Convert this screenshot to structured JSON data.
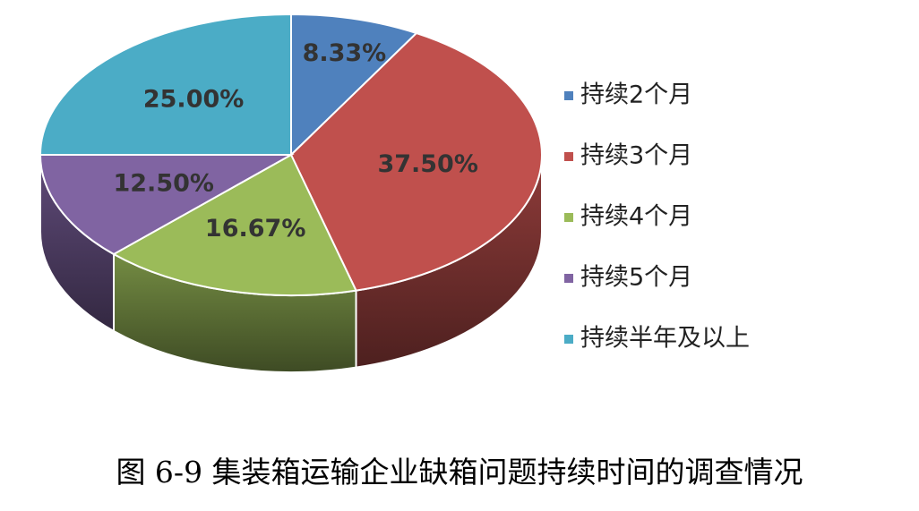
{
  "chart_data": {
    "type": "pie",
    "title": "图 6-9 集装箱运输企业缺箱问题持续时间的调查情况",
    "categories": [
      "持续2个月",
      "持续3个月",
      "持续4个月",
      "持续5个月",
      "持续半年及以上"
    ],
    "values": [
      8.33,
      37.5,
      16.67,
      12.5,
      25
    ],
    "value_labels": [
      "8.33%",
      "37.50%",
      "16.67%",
      "12.50%",
      "25.00%"
    ],
    "colors": [
      "#4f81bd",
      "#c0504d",
      "#9bbb59",
      "#8064a2",
      "#4bacc6"
    ],
    "legend": "right"
  }
}
